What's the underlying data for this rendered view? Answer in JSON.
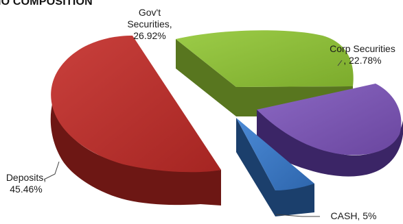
{
  "colors": {
    "deposits_top": "#b3302d",
    "deposits_side": "#6d1714",
    "govt_top": "#8cbc3a",
    "govt_side": "#58761f",
    "corp_top": "#7956b0",
    "corp_side": "#3b2566",
    "cash_top": "#3a78c6",
    "cash_side": "#1b3f6c"
  },
  "chart_data": {
    "type": "pie",
    "title": "LIO COMPOSITION",
    "three_d": true,
    "exploded": true,
    "slices": [
      {
        "label": "Gov't Securities",
        "value": 26.92,
        "display": "26.92%",
        "label_lines": [
          "Gov't",
          "Securities,",
          "26.92%"
        ]
      },
      {
        "label": "Corp Securities",
        "value": 22.78,
        "display": "22.78%",
        "label_lines": [
          "Corp Securities",
          ", 22.78%"
        ]
      },
      {
        "label": "CASH",
        "value": 5,
        "display": "5%",
        "label_lines": [
          "CASH, 5%"
        ]
      },
      {
        "label": "Deposits",
        "value": 45.46,
        "display": "45.46%",
        "label_lines": [
          "Deposits,",
          "45.46%"
        ]
      }
    ]
  }
}
